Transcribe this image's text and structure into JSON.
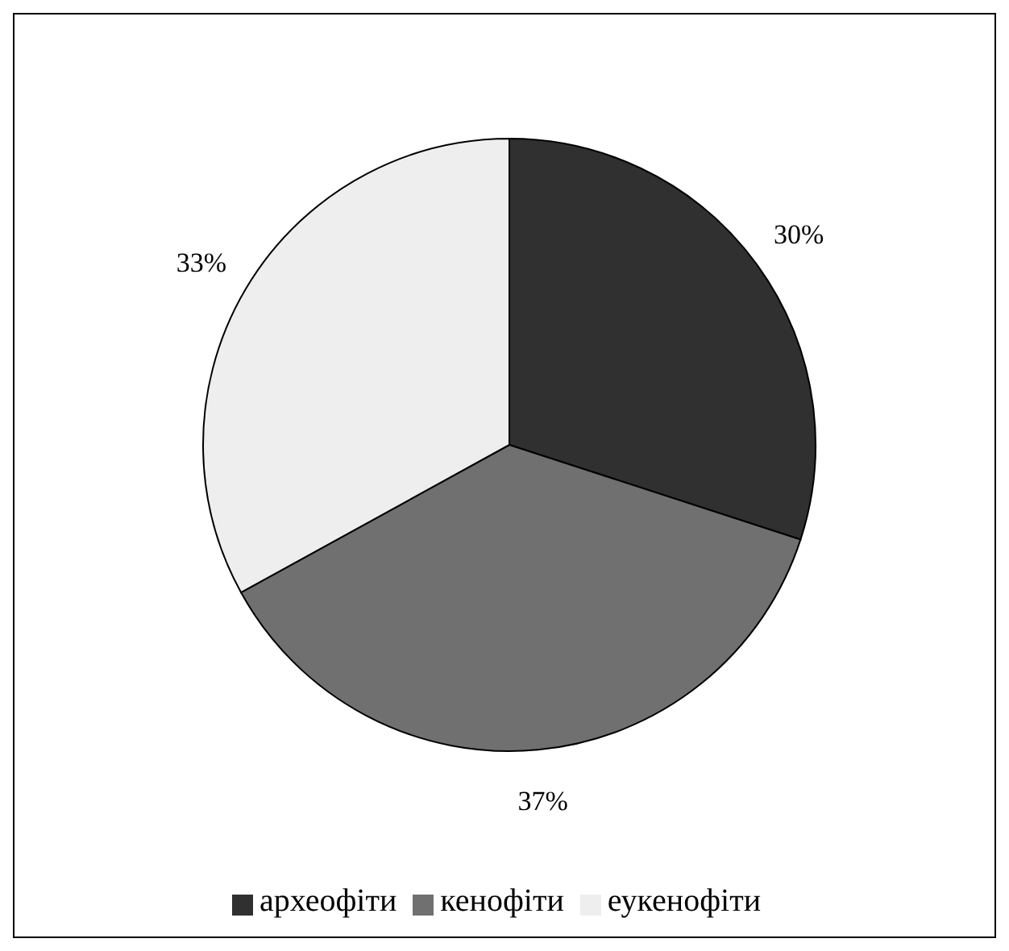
{
  "chart_data": {
    "type": "pie",
    "categories": [
      "археофіти",
      "кенофіти",
      "еукенофіти"
    ],
    "values": [
      30,
      37,
      33
    ],
    "value_labels": [
      "30%",
      "37%",
      "33%"
    ],
    "colors": [
      "#303030",
      "#707070",
      "#eeeeee"
    ],
    "legend": "bottom"
  }
}
